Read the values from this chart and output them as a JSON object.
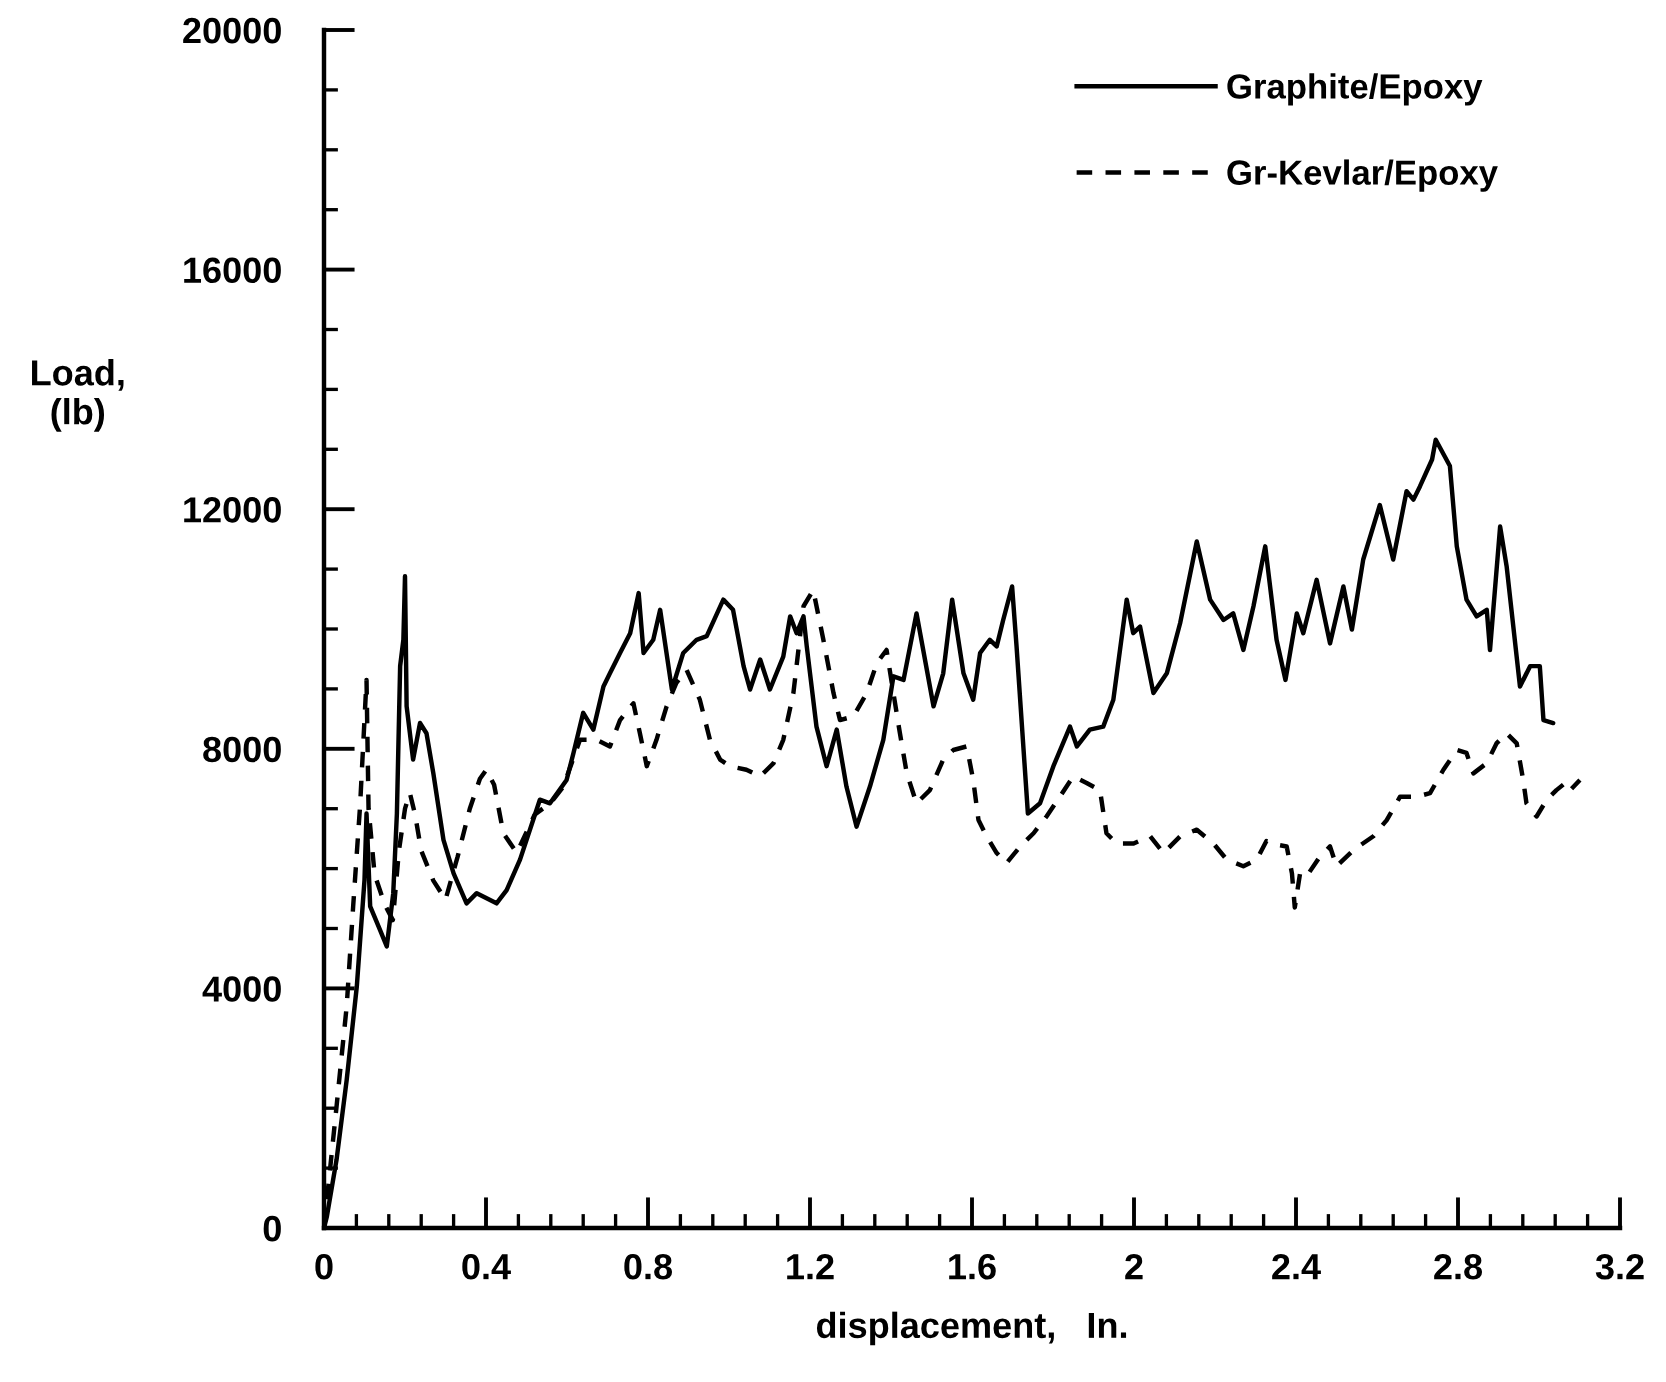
{
  "chart_data": {
    "type": "line",
    "xlabel": "displacement,   In.",
    "ylabel": "Load,\n(lb)",
    "xlim": [
      0,
      3.2
    ],
    "xticks": [
      0,
      {
        "value": 0.08,
        "label": null
      },
      {
        "value": 0.16,
        "label": null
      },
      {
        "value": 0.24,
        "label": null
      },
      {
        "value": 0.32,
        "label": null
      },
      0.4,
      {
        "value": 0.48,
        "label": null
      },
      {
        "value": 0.56,
        "label": null
      },
      {
        "value": 0.64,
        "label": null
      },
      {
        "value": 0.72,
        "label": null
      },
      0.8,
      {
        "value": 0.88,
        "label": null
      },
      {
        "value": 0.96,
        "label": null
      },
      {
        "value": 1.04,
        "label": null
      },
      {
        "value": 1.12,
        "label": null
      },
      1.2,
      {
        "value": 1.28,
        "label": null
      },
      {
        "value": 1.36,
        "label": null
      },
      {
        "value": 1.44,
        "label": null
      },
      {
        "value": 1.52,
        "label": null
      },
      1.6,
      {
        "value": 1.68,
        "label": null
      },
      {
        "value": 1.76,
        "label": null
      },
      {
        "value": 1.84,
        "label": null
      },
      {
        "value": 1.92,
        "label": null
      },
      2,
      {
        "value": 2.08,
        "label": null
      },
      {
        "value": 2.16,
        "label": null
      },
      {
        "value": 2.24,
        "label": null
      },
      {
        "value": 2.32,
        "label": null
      },
      2.4,
      {
        "value": 2.48,
        "label": null
      },
      {
        "value": 2.56,
        "label": null
      },
      {
        "value": 2.64,
        "label": null
      },
      {
        "value": 2.72,
        "label": null
      },
      2.8,
      {
        "value": 2.88,
        "label": null
      },
      {
        "value": 2.96,
        "label": null
      },
      {
        "value": 3.04,
        "label": null
      },
      {
        "value": 3.12,
        "label": null
      },
      3.2
    ],
    "ylim": [
      0,
      20000
    ],
    "yticks": [
      0,
      {
        "value": 1000,
        "label": null
      },
      {
        "value": 2000,
        "label": null
      },
      {
        "value": 3000,
        "label": null
      },
      4000,
      {
        "value": 5000,
        "label": null
      },
      {
        "value": 6000,
        "label": null
      },
      {
        "value": 7000,
        "label": null
      },
      8000,
      {
        "value": 9000,
        "label": null
      },
      {
        "value": 10000,
        "label": null
      },
      {
        "value": 11000,
        "label": null
      },
      12000,
      {
        "value": 13000,
        "label": null
      },
      {
        "value": 14000,
        "label": null
      },
      {
        "value": 15000,
        "label": null
      },
      16000,
      {
        "value": 17000,
        "label": null
      },
      {
        "value": 18000,
        "label": null
      },
      {
        "value": 19000,
        "label": null
      },
      20000
    ],
    "legend": "top right",
    "series": [
      {
        "name": "Graphite/Epoxy",
        "color": "#000000",
        "line_style": "solid",
        "x": [
          0,
          0.007,
          0.031,
          0.056,
          0.081,
          0.1,
          0.105,
          0.114,
          0.138,
          0.155,
          0.171,
          0.18,
          0.188,
          0.196,
          0.2,
          0.204,
          0.22,
          0.237,
          0.253,
          0.27,
          0.295,
          0.32,
          0.352,
          0.377,
          0.426,
          0.451,
          0.484,
          0.533,
          0.558,
          0.599,
          0.616,
          0.64,
          0.665,
          0.69,
          0.706,
          0.731,
          0.756,
          0.777,
          0.789,
          0.813,
          0.83,
          0.859,
          0.887,
          0.92,
          0.945,
          0.986,
          1.01,
          1.036,
          1.052,
          1.077,
          1.101,
          1.134,
          1.151,
          1.167,
          1.184,
          1.192,
          1.216,
          1.241,
          1.266,
          1.29,
          1.315,
          1.348,
          1.381,
          1.406,
          1.431,
          1.463,
          1.505,
          1.529,
          1.551,
          1.579,
          1.603,
          1.62,
          1.644,
          1.661,
          1.677,
          1.699,
          1.71,
          1.738,
          1.768,
          1.801,
          1.842,
          1.859,
          1.891,
          1.924,
          1.949,
          1.982,
          1.998,
          2.015,
          2.048,
          2.081,
          2.114,
          2.155,
          2.188,
          2.221,
          2.245,
          2.27,
          2.295,
          2.324,
          2.352,
          2.374,
          2.402,
          2.418,
          2.451,
          2.484,
          2.517,
          2.538,
          2.566,
          2.607,
          2.64,
          2.673,
          2.69,
          2.706,
          2.736,
          2.745,
          2.78,
          2.797,
          2.821,
          2.846,
          2.871,
          2.879,
          2.904,
          2.92,
          2.953,
          2.978,
          3.002,
          3.011,
          3.035
        ],
        "values": [
          0,
          190,
          1140,
          2470,
          4030,
          5810,
          6920,
          5370,
          4980,
          4700,
          5590,
          6920,
          9380,
          9820,
          10880,
          8710,
          7820,
          8430,
          8260,
          7590,
          6480,
          5920,
          5420,
          5590,
          5420,
          5640,
          6150,
          7150,
          7090,
          7480,
          7930,
          8600,
          8320,
          9040,
          9260,
          9600,
          9930,
          10600,
          9600,
          9820,
          10320,
          8990,
          9600,
          9820,
          9880,
          10490,
          10320,
          9380,
          8990,
          9490,
          8990,
          9540,
          10210,
          9930,
          10210,
          9710,
          8370,
          7710,
          8320,
          7370,
          6700,
          7370,
          8150,
          9210,
          9150,
          10260,
          8710,
          9260,
          10490,
          9260,
          8820,
          9600,
          9820,
          9710,
          10150,
          10710,
          9710,
          6920,
          7090,
          7710,
          8370,
          8040,
          8320,
          8370,
          8820,
          10490,
          9930,
          10040,
          8930,
          9260,
          10100,
          11460,
          10490,
          10150,
          10260,
          9650,
          10380,
          11380,
          9820,
          9150,
          10260,
          9930,
          10820,
          9760,
          10710,
          9990,
          11160,
          12070,
          11160,
          12300,
          12160,
          12380,
          12830,
          13160,
          12720,
          11380,
          10490,
          10210,
          10320,
          9650,
          11710,
          11050,
          9040,
          9380,
          9380,
          8480,
          8430
        ]
      },
      {
        "name": "Gr-Kevlar/Epoxy",
        "color": "#000000",
        "line_style": "dashed",
        "x": [
          0,
          0.031,
          0.056,
          0.072,
          0.089,
          0.105,
          0.11,
          0.125,
          0.15,
          0.17,
          0.185,
          0.2,
          0.212,
          0.225,
          0.24,
          0.27,
          0.3,
          0.33,
          0.36,
          0.385,
          0.401,
          0.42,
          0.443,
          0.476,
          0.52,
          0.56,
          0.591,
          0.632,
          0.673,
          0.706,
          0.731,
          0.764,
          0.78,
          0.797,
          0.821,
          0.846,
          0.87,
          0.895,
          0.928,
          0.953,
          0.978,
          1.002,
          1.043,
          1.077,
          1.11,
          1.134,
          1.159,
          1.184,
          1.208,
          1.233,
          1.258,
          1.274,
          1.307,
          1.34,
          1.365,
          1.389,
          1.406,
          1.422,
          1.439,
          1.463,
          1.496,
          1.529,
          1.554,
          1.587,
          1.603,
          1.616,
          1.636,
          1.661,
          1.685,
          1.719,
          1.752,
          1.784,
          1.817,
          1.85,
          1.883,
          1.916,
          1.932,
          1.957,
          1.999,
          2.04,
          2.073,
          2.114,
          2.155,
          2.196,
          2.229,
          2.27,
          2.303,
          2.327,
          2.36,
          2.377,
          2.39,
          2.397,
          2.41,
          2.426,
          2.459,
          2.484,
          2.5,
          2.542,
          2.591,
          2.624,
          2.657,
          2.698,
          2.731,
          2.764,
          2.797,
          2.821,
          2.838,
          2.871,
          2.895,
          2.92,
          2.945,
          2.961,
          2.969,
          2.994,
          3.019,
          3.043,
          3.065,
          3.077,
          3.101
        ],
        "values": [
          0,
          2030,
          3700,
          5370,
          7040,
          9150,
          7000,
          5900,
          5400,
          5140,
          6300,
          7000,
          7260,
          6900,
          6300,
          5800,
          5480,
          6200,
          7000,
          7500,
          7650,
          7400,
          6590,
          6260,
          6900,
          7100,
          7370,
          8150,
          8150,
          8040,
          8480,
          8760,
          8260,
          7710,
          8150,
          8710,
          9100,
          9320,
          8820,
          8150,
          7820,
          7710,
          7650,
          7540,
          7760,
          8150,
          8930,
          10380,
          10650,
          9820,
          8930,
          8480,
          8540,
          8930,
          9430,
          9650,
          8930,
          8260,
          7590,
          7090,
          7310,
          7820,
          7980,
          8040,
          7480,
          6810,
          6540,
          6260,
          6090,
          6370,
          6590,
          6870,
          7200,
          7540,
          7430,
          7310,
          6590,
          6420,
          6420,
          6540,
          6260,
          6540,
          6650,
          6420,
          6150,
          6040,
          6150,
          6460,
          6390,
          6370,
          5920,
          5350,
          5920,
          5870,
          6200,
          6370,
          6040,
          6310,
          6540,
          6810,
          7200,
          7200,
          7260,
          7650,
          7980,
          7930,
          7590,
          7760,
          8090,
          8260,
          8090,
          7480,
          7090,
          6870,
          7150,
          7310,
          7430,
          7310,
          7480
        ]
      }
    ]
  }
}
